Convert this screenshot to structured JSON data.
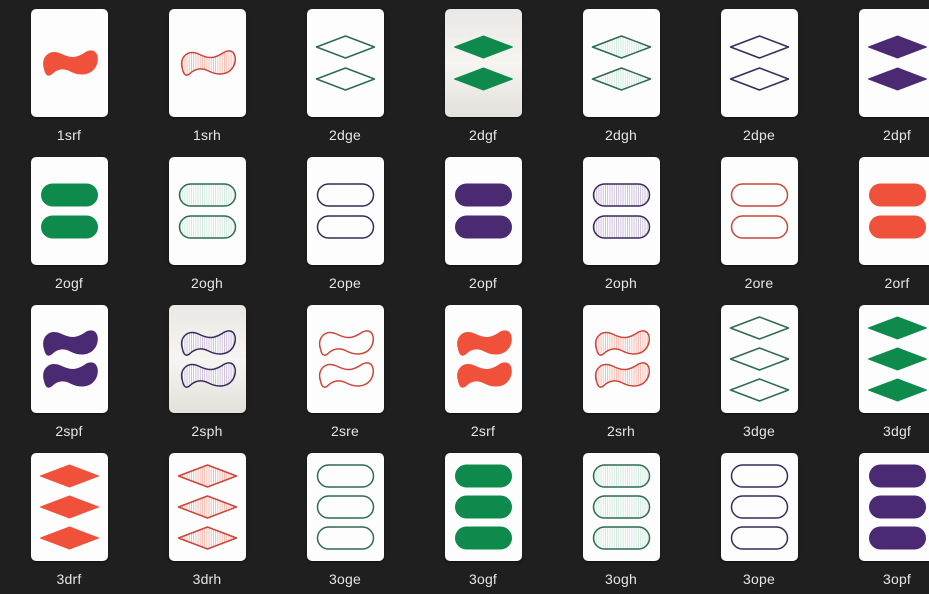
{
  "colors": {
    "r": "#f0513b",
    "r_light": "#f7b4aa",
    "g": "#0f8a4d",
    "g_light": "#cfe9dd",
    "p": "#4a2a73",
    "p_light": "#c8bcd8",
    "g_outline": "#2f6a52",
    "p_outline": "#3a2a5a",
    "r_outline": "#c8473a"
  },
  "files": [
    {
      "label": "1srf",
      "count": 1,
      "shape": "squiggle",
      "color": "r",
      "fill": "solid"
    },
    {
      "label": "1srh",
      "count": 1,
      "shape": "squiggle",
      "color": "r",
      "fill": "shaded"
    },
    {
      "label": "2dge",
      "count": 2,
      "shape": "diamond",
      "color": "g",
      "fill": "empty"
    },
    {
      "label": "2dgf",
      "count": 2,
      "shape": "diamond",
      "color": "g",
      "fill": "solid",
      "dim": true
    },
    {
      "label": "2dgh",
      "count": 2,
      "shape": "diamond",
      "color": "g",
      "fill": "shaded"
    },
    {
      "label": "2dpe",
      "count": 2,
      "shape": "diamond",
      "color": "p",
      "fill": "empty"
    },
    {
      "label": "2dpf",
      "count": 2,
      "shape": "diamond",
      "color": "p",
      "fill": "solid"
    },
    {
      "label": "2ogf",
      "count": 2,
      "shape": "oval",
      "color": "g",
      "fill": "solid"
    },
    {
      "label": "2ogh",
      "count": 2,
      "shape": "oval",
      "color": "g",
      "fill": "shaded"
    },
    {
      "label": "2ope",
      "count": 2,
      "shape": "oval",
      "color": "p",
      "fill": "empty"
    },
    {
      "label": "2opf",
      "count": 2,
      "shape": "oval",
      "color": "p",
      "fill": "solid"
    },
    {
      "label": "2oph",
      "count": 2,
      "shape": "oval",
      "color": "p",
      "fill": "shaded"
    },
    {
      "label": "2ore",
      "count": 2,
      "shape": "oval",
      "color": "r",
      "fill": "empty"
    },
    {
      "label": "2orf",
      "count": 2,
      "shape": "oval",
      "color": "r",
      "fill": "solid"
    },
    {
      "label": "2spf",
      "count": 2,
      "shape": "squiggle",
      "color": "p",
      "fill": "solid"
    },
    {
      "label": "2sph",
      "count": 2,
      "shape": "squiggle",
      "color": "p",
      "fill": "shaded",
      "dim": true
    },
    {
      "label": "2sre",
      "count": 2,
      "shape": "squiggle",
      "color": "r",
      "fill": "empty"
    },
    {
      "label": "2srf",
      "count": 2,
      "shape": "squiggle",
      "color": "r",
      "fill": "solid"
    },
    {
      "label": "2srh",
      "count": 2,
      "shape": "squiggle",
      "color": "r",
      "fill": "shaded"
    },
    {
      "label": "3dge",
      "count": 3,
      "shape": "diamond",
      "color": "g",
      "fill": "empty"
    },
    {
      "label": "3dgf",
      "count": 3,
      "shape": "diamond",
      "color": "g",
      "fill": "solid"
    },
    {
      "label": "3drf",
      "count": 3,
      "shape": "diamond",
      "color": "r",
      "fill": "solid"
    },
    {
      "label": "3drh",
      "count": 3,
      "shape": "diamond",
      "color": "r",
      "fill": "shaded"
    },
    {
      "label": "3oge",
      "count": 3,
      "shape": "oval",
      "color": "g",
      "fill": "empty"
    },
    {
      "label": "3ogf",
      "count": 3,
      "shape": "oval",
      "color": "g",
      "fill": "solid"
    },
    {
      "label": "3ogh",
      "count": 3,
      "shape": "oval",
      "color": "g",
      "fill": "shaded"
    },
    {
      "label": "3ope",
      "count": 3,
      "shape": "oval",
      "color": "p",
      "fill": "empty"
    },
    {
      "label": "3opf",
      "count": 3,
      "shape": "oval",
      "color": "p",
      "fill": "solid"
    }
  ]
}
